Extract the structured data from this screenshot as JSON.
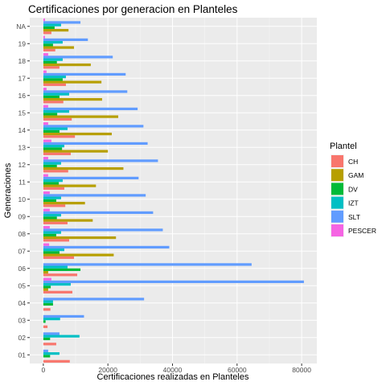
{
  "chart_data": {
    "type": "bar",
    "orientation": "horizontal",
    "title": "Certificaciones por generacion en Planteles",
    "xlabel": "Certificaciones realizadas en Planteles",
    "ylabel": "Generaciones",
    "xlim": [
      0,
      85000
    ],
    "xticks": [
      0,
      20000,
      40000,
      60000,
      80000
    ],
    "xtick_labels": [
      "0",
      "20000",
      "40000",
      "60000",
      "80000"
    ],
    "grid": true,
    "legend_position": "right",
    "legend_title": "Plantel",
    "categories": [
      "01",
      "02",
      "03",
      "04",
      "05",
      "06",
      "07",
      "08",
      "09",
      "10",
      "11",
      "12",
      "13",
      "14",
      "15",
      "16",
      "17",
      "18",
      "19",
      "NA"
    ],
    "series": [
      {
        "name": "CH",
        "color": "#F8766D",
        "values": [
          8200,
          4000,
          1300,
          2200,
          9000,
          10500,
          9500,
          8000,
          7500,
          6800,
          6500,
          7700,
          8500,
          9800,
          8800,
          6200,
          7000,
          5000,
          3700,
          2500
        ]
      },
      {
        "name": "GAM",
        "color": "#B79F00",
        "values": [
          0,
          0,
          0,
          0,
          1500,
          1500,
          21800,
          22500,
          15300,
          12900,
          16300,
          24800,
          20000,
          21200,
          23200,
          18200,
          18000,
          14700,
          9500,
          7800
        ]
      },
      {
        "name": "DV",
        "color": "#00BA38",
        "values": [
          2100,
          2100,
          700,
          3000,
          2300,
          11500,
          5000,
          4000,
          4200,
          4000,
          4800,
          4200,
          5800,
          5000,
          4300,
          5000,
          6000,
          4200,
          3000,
          3500
        ]
      },
      {
        "name": "IZT",
        "color": "#00BFC4",
        "values": [
          5000,
          11200,
          5200,
          3000,
          8500,
          7500,
          6500,
          5500,
          5500,
          5500,
          6000,
          5500,
          6500,
          7500,
          8000,
          8000,
          7000,
          6000,
          6000,
          5500
        ]
      },
      {
        "name": "SLT",
        "color": "#619CFF",
        "values": [
          1500,
          5000,
          12600,
          31200,
          80700,
          64500,
          39000,
          37000,
          34000,
          31700,
          29500,
          35500,
          32300,
          31000,
          29200,
          26000,
          25500,
          21500,
          13800,
          11500
        ]
      },
      {
        "name": "PESCER",
        "color": "#F564E3",
        "values": [
          0,
          0,
          0,
          0,
          2500,
          0,
          1800,
          2000,
          2000,
          2000,
          1500,
          1500,
          2500,
          1500,
          1500,
          1000,
          1000,
          1500,
          500,
          500
        ]
      }
    ]
  }
}
